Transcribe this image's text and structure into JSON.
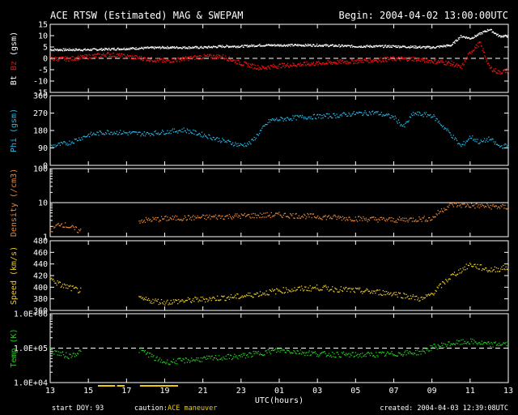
{
  "header": {
    "title": "ACE RTSW (Estimated) MAG & SWEPAM",
    "begin": "Begin: 2004-04-02 13:00:00UTC"
  },
  "footer": {
    "start_doy_label": "start DOY:",
    "start_doy": "93",
    "caution_label": "caution:",
    "caution_text": "ACE maneuver",
    "created": "created: 2004-04-03 12:39:08UTC"
  },
  "colors": {
    "bt": "#ffffff",
    "bz": "#ee1111",
    "phi": "#22bbee",
    "density": "#ee8833",
    "speed": "#eecc22",
    "temp": "#22cc22",
    "caution": "#eecc00"
  },
  "chart_data": [
    {
      "type": "line",
      "name": "mag",
      "ylabel_parts": [
        "Bt",
        "Bz",
        "(gsm)"
      ],
      "ylim": [
        -15,
        15
      ],
      "yticks": [
        "15",
        "10",
        "5",
        "0",
        "-5",
        "-10",
        "-15"
      ],
      "ytick_values": [
        15,
        10,
        5,
        0,
        -5,
        -10,
        -15
      ],
      "zero_dashed": true,
      "series": [
        {
          "name": "Bt",
          "x": [
            0,
            2,
            4,
            6,
            8,
            9,
            10,
            11,
            12,
            14,
            16,
            18,
            20,
            21,
            21.5,
            22,
            23,
            23.5,
            24
          ],
          "y": [
            4,
            4,
            4.5,
            5,
            5,
            5.5,
            5.5,
            6,
            6,
            6,
            5.5,
            5.5,
            5,
            6,
            10,
            9,
            13,
            10,
            10
          ]
        },
        {
          "name": "Bz",
          "x": [
            0,
            1,
            2,
            3,
            4,
            5,
            6,
            7,
            8,
            9,
            10,
            11,
            12,
            14,
            16,
            18,
            19,
            20,
            21,
            21.5,
            22,
            22.5,
            23,
            23.5,
            24
          ],
          "y": [
            0,
            0,
            1,
            2,
            1,
            0,
            -1,
            0,
            1,
            1,
            -2,
            -4,
            -3,
            -2,
            -1,
            0,
            0,
            -1,
            -2,
            -4,
            3,
            7,
            -4,
            -6,
            -5
          ]
        }
      ]
    },
    {
      "type": "scatter",
      "name": "phi",
      "ylabel_parts": [
        "Phi (gsm)"
      ],
      "ylim": [
        0,
        360
      ],
      "yticks": [
        "360",
        "270",
        "180",
        "90",
        "0"
      ],
      "ytick_values": [
        360,
        270,
        180,
        90,
        0
      ],
      "series": [
        {
          "name": "Phi",
          "x": [
            0,
            1,
            2,
            3,
            4,
            5,
            6,
            7,
            8,
            9,
            10,
            10.5,
            11,
            11.5,
            12,
            13,
            14,
            15,
            16,
            17,
            18,
            18.5,
            19,
            20,
            21,
            21.5,
            22,
            22.5,
            23,
            23.5,
            24
          ],
          "y": [
            100,
            120,
            160,
            175,
            170,
            165,
            175,
            185,
            160,
            130,
            105,
            120,
            180,
            235,
            240,
            250,
            255,
            260,
            270,
            275,
            250,
            200,
            270,
            260,
            160,
            100,
            150,
            120,
            140,
            100,
            105
          ]
        }
      ]
    },
    {
      "type": "scatter",
      "name": "density",
      "ylabel_parts": [
        "Density (/cm3)"
      ],
      "yscale": "log",
      "ylim": [
        1,
        100
      ],
      "yticks": [
        "100",
        "10",
        "1"
      ],
      "ytick_values": [
        100,
        10,
        1
      ],
      "ref_line": 10,
      "series": [
        {
          "name": "Density",
          "x": [
            0,
            0.5,
            1,
            1.5,
            4.5,
            6,
            8,
            10,
            12,
            14,
            16,
            18,
            20,
            21,
            22,
            23,
            24
          ],
          "y": [
            1.5,
            2.5,
            2,
            1.5,
            3,
            3.5,
            3.8,
            4.2,
            4.5,
            4,
            3.5,
            3.2,
            3.5,
            9,
            8.5,
            8,
            7.5
          ]
        }
      ]
    },
    {
      "type": "scatter",
      "name": "speed",
      "ylabel_parts": [
        "Speed (km/s)"
      ],
      "ylim": [
        360,
        480
      ],
      "yticks": [
        "480",
        "460",
        "440",
        "420",
        "400",
        "380",
        "360"
      ],
      "ytick_values": [
        480,
        460,
        440,
        420,
        400,
        380,
        360
      ],
      "series": [
        {
          "name": "Speed",
          "x": [
            0,
            0.5,
            1,
            1.5,
            4.7,
            6,
            8,
            10,
            12,
            14,
            16,
            18,
            19.5,
            20,
            21,
            22,
            23,
            24
          ],
          "y": [
            415,
            405,
            400,
            395,
            380,
            375,
            380,
            385,
            395,
            400,
            395,
            390,
            380,
            390,
            420,
            440,
            430,
            435
          ]
        }
      ]
    },
    {
      "type": "scatter",
      "name": "temp",
      "ylabel_parts": [
        "Temp (K)"
      ],
      "yscale": "log",
      "ylim": [
        10000,
        1000000
      ],
      "yticks": [
        "1.0E+06",
        "1.0E+05",
        "1.0E+04"
      ],
      "ytick_values": [
        1000000,
        100000,
        10000
      ],
      "ref_line": 100000,
      "ref_dashed": true,
      "series": [
        {
          "name": "Temp",
          "x": [
            0,
            0.5,
            1,
            1.5,
            4.7,
            5.5,
            6,
            8,
            10,
            12,
            14,
            16,
            18,
            19.5,
            20,
            21,
            22,
            23,
            24
          ],
          "y": [
            90000,
            70000,
            60000,
            80000,
            90000,
            50000,
            40000,
            50000,
            60000,
            90000,
            70000,
            65000,
            70000,
            80000,
            110000,
            140000,
            160000,
            130000,
            140000
          ]
        }
      ]
    },
    {
      "type": "axis",
      "name": "time",
      "xlabel": "UTC(hours)",
      "xlim": [
        0,
        24
      ],
      "xticks": [
        "13",
        "15",
        "17",
        "19",
        "21",
        "23",
        "01",
        "03",
        "05",
        "07",
        "09",
        "11",
        "13"
      ],
      "xtick_values": [
        0,
        2,
        4,
        6,
        8,
        10,
        12,
        14,
        16,
        18,
        20,
        22,
        24
      ],
      "caution_intervals": [
        [
          2.5,
          3.4
        ],
        [
          3.5,
          3.9
        ],
        [
          4.7,
          6.7
        ]
      ]
    }
  ]
}
